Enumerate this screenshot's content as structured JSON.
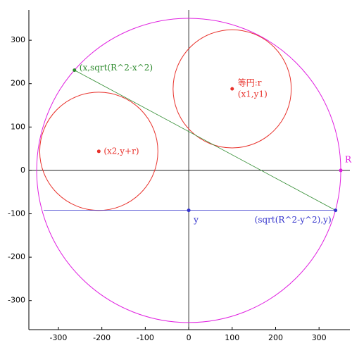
{
  "chart_data": {
    "type": "geometry",
    "xlim": [
      -368,
      371
    ],
    "ylim": [
      -367,
      370
    ],
    "xticks": [
      -300,
      -200,
      -100,
      0,
      100,
      200,
      300
    ],
    "yticks": [
      -300,
      -200,
      -100,
      0,
      100,
      200,
      300
    ],
    "circles": [
      {
        "cx": 0,
        "cy": 0,
        "r": 350,
        "color": "#e020e0"
      },
      {
        "cx": 100,
        "cy": 188,
        "r": 136,
        "color": "#e8322c"
      },
      {
        "cx": -207,
        "cy": 44,
        "r": 136,
        "color": "#e8322c"
      }
    ],
    "segments": [
      {
        "x": [
          -263,
          338
        ],
        "y": [
          231,
          -92
        ],
        "color": "#2e8b2e"
      },
      {
        "x": [
          -334,
          338
        ],
        "y": [
          -92,
          -92
        ],
        "color": "#3333cc"
      }
    ],
    "points": [
      {
        "x": 100,
        "y": 188,
        "color": "#e8322c",
        "labels": [
          "等円:r",
          "(x1,y1)"
        ]
      },
      {
        "x": -207,
        "y": 44,
        "color": "#e8322c",
        "labels": [
          "(x2,y+r)"
        ]
      },
      {
        "x": -263,
        "y": 231,
        "color": "#2e8b2e",
        "labels": [
          "(x,sqrt(R^2-x^2)"
        ]
      },
      {
        "x": 0,
        "y": -92,
        "color": "#3333cc",
        "labels": [
          "y"
        ]
      },
      {
        "x": 338,
        "y": -92,
        "color": "#3333cc",
        "labels": [
          "(sqrt(R^2-y^2),y)"
        ]
      },
      {
        "x": 350,
        "y": 0,
        "color": "#e020e0",
        "labels": [
          "R"
        ]
      }
    ]
  }
}
